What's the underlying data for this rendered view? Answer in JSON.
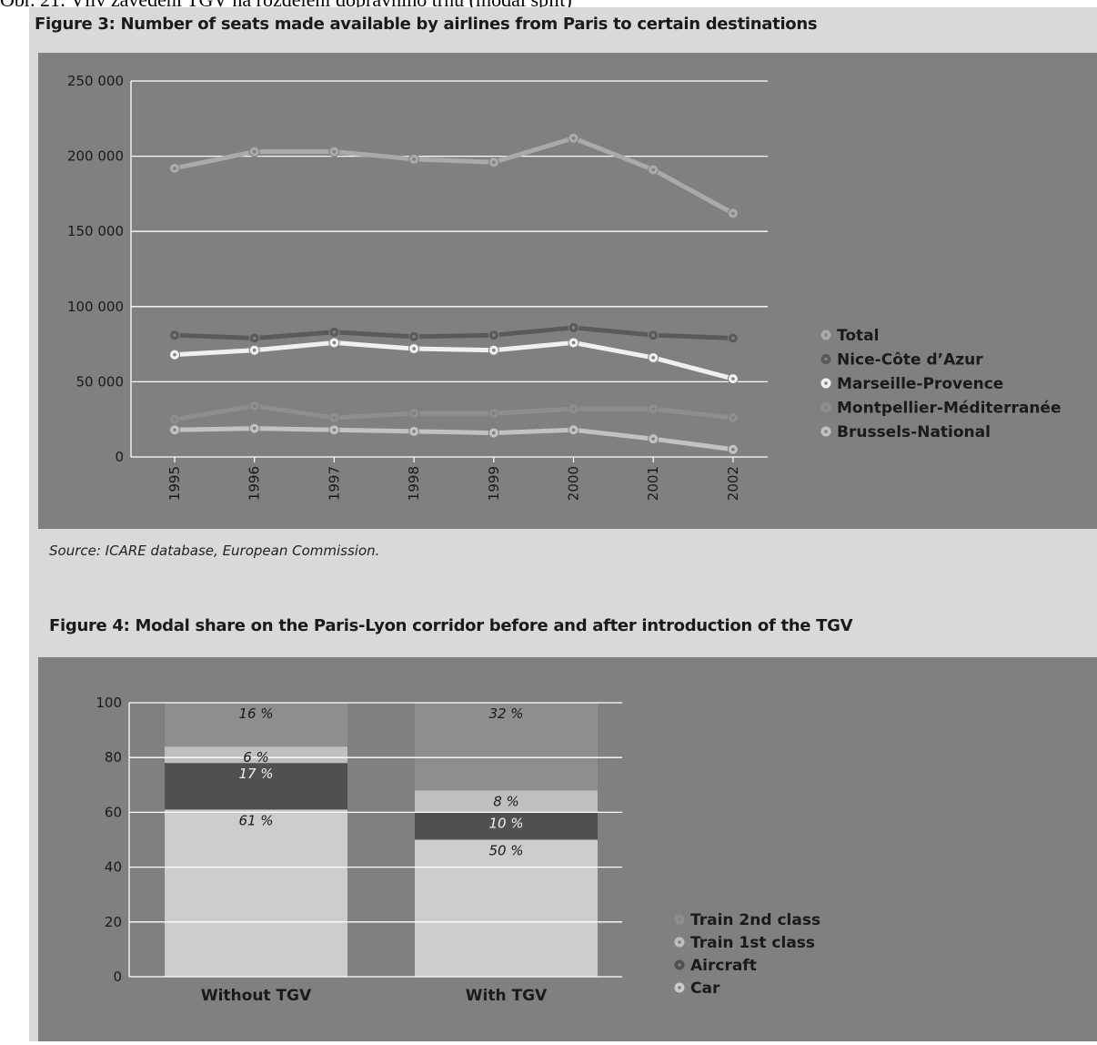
{
  "page": {
    "caption": "Obr. 21: Vliv zavedení TGV na rozdělení dopravního trhu (modal split)"
  },
  "chart_data": [
    {
      "type": "line",
      "title": "Figure 3: Number of seats made available by airlines from Paris to certain destinations",
      "x": [
        "1995",
        "1996",
        "1997",
        "1998",
        "1999",
        "2000",
        "2001",
        "2002"
      ],
      "ylim": [
        0,
        250000
      ],
      "yticks": [
        0,
        50000,
        100000,
        150000,
        200000,
        250000
      ],
      "ytick_labels": [
        "0",
        "50 000",
        "100 000",
        "150 000",
        "200 000",
        "250 000"
      ],
      "grid": true,
      "legend_position": "right",
      "series": [
        {
          "name": "Total",
          "color": "#aaaaaa",
          "values": [
            192000,
            203000,
            203000,
            198000,
            196000,
            212000,
            191000,
            162000
          ]
        },
        {
          "name": "Nice-Côte d’Azur",
          "color": "#5a5a5a",
          "values": [
            81000,
            79000,
            83000,
            80000,
            81000,
            86000,
            81000,
            79000
          ]
        },
        {
          "name": "Marseille-Provence",
          "color": "#f0f0f0",
          "values": [
            68000,
            71000,
            76000,
            72000,
            71000,
            76000,
            66000,
            52000
          ]
        },
        {
          "name": "Montpellier-Méditerranée",
          "color": "#8e8e8e",
          "values": [
            25000,
            34000,
            26000,
            29000,
            29000,
            32000,
            32000,
            26000
          ]
        },
        {
          "name": "Brussels-National",
          "color": "#c2c2c2",
          "values": [
            18000,
            19000,
            18000,
            17000,
            16000,
            18000,
            12000,
            5000
          ]
        }
      ],
      "source": "Source:  ICARE database,  European Commission."
    },
    {
      "type": "bar",
      "stacked": true,
      "title": "Figure 4: Modal share on the Paris-Lyon corridor before and after introduction of the TGV",
      "categories": [
        "Without TGV",
        "With TGV"
      ],
      "ylim": [
        0,
        100
      ],
      "yticks": [
        0,
        20,
        40,
        60,
        80,
        100
      ],
      "grid": true,
      "legend_position": "right",
      "series": [
        {
          "name": "Car",
          "color": "#cccccc",
          "values": [
            61,
            50
          ],
          "labels": [
            "61 %",
            "50 %"
          ]
        },
        {
          "name": "Aircraft",
          "color": "#505050",
          "values": [
            17,
            10
          ],
          "labels": [
            "17 %",
            "10 %"
          ]
        },
        {
          "name": "Train 1st class",
          "color": "#bfbfbf",
          "values": [
            6,
            8
          ],
          "labels": [
            "6 %",
            "8 %"
          ]
        },
        {
          "name": "Train 2nd class",
          "color": "#8e8e8e",
          "values": [
            16,
            32
          ],
          "labels": [
            "16 %",
            "32 %"
          ]
        }
      ]
    }
  ]
}
